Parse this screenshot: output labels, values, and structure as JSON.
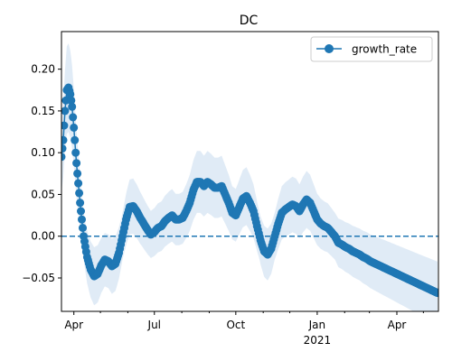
{
  "chart_data": {
    "type": "line",
    "title": "DC",
    "xlabel": "",
    "ylabel": "",
    "x_type": "date",
    "xlim": [
      "2020-03-18",
      "2021-05-18"
    ],
    "ylim": [
      -0.09,
      0.245
    ],
    "yticks": [
      -0.05,
      0.0,
      0.05,
      0.1,
      0.15,
      0.2
    ],
    "ytick_labels": [
      "−0.05",
      "0.00",
      "0.05",
      "0.10",
      "0.15",
      "0.20"
    ],
    "xticks_major": [
      {
        "date": "2020-04-01",
        "label": "Apr",
        "sublabel": ""
      },
      {
        "date": "2020-07-01",
        "label": "Jul",
        "sublabel": ""
      },
      {
        "date": "2020-10-01",
        "label": "Oct",
        "sublabel": ""
      },
      {
        "date": "2021-01-01",
        "label": "Jan",
        "sublabel": "2021"
      },
      {
        "date": "2021-04-01",
        "label": "Apr",
        "sublabel": ""
      }
    ],
    "xticks_minor": [
      "2020-05-01",
      "2020-06-01",
      "2020-08-01",
      "2020-09-01",
      "2020-11-01",
      "2020-12-01",
      "2021-02-01",
      "2021-03-01",
      "2021-05-01"
    ],
    "reference_line": {
      "y": 0.0,
      "style": "dashed"
    },
    "legend": {
      "position": "top-right",
      "entries": [
        "growth_rate"
      ]
    },
    "colors": {
      "series": "#1f77b4",
      "band": "#dbe8f4"
    },
    "band_width": 0.028,
    "series": [
      {
        "name": "growth_rate",
        "x": [
          "2020-03-18",
          "2020-03-20",
          "2020-03-22",
          "2020-03-24",
          "2020-03-26",
          "2020-03-28",
          "2020-03-30",
          "2020-04-01",
          "2020-04-03",
          "2020-04-05",
          "2020-04-08",
          "2020-04-12",
          "2020-04-16",
          "2020-04-20",
          "2020-04-24",
          "2020-04-28",
          "2020-05-02",
          "2020-05-06",
          "2020-05-10",
          "2020-05-14",
          "2020-05-18",
          "2020-05-22",
          "2020-05-26",
          "2020-05-30",
          "2020-06-03",
          "2020-06-07",
          "2020-06-11",
          "2020-06-15",
          "2020-06-19",
          "2020-06-23",
          "2020-06-27",
          "2020-07-01",
          "2020-07-05",
          "2020-07-09",
          "2020-07-13",
          "2020-07-17",
          "2020-07-21",
          "2020-07-25",
          "2020-07-29",
          "2020-08-02",
          "2020-08-06",
          "2020-08-10",
          "2020-08-14",
          "2020-08-18",
          "2020-08-22",
          "2020-08-26",
          "2020-08-30",
          "2020-09-03",
          "2020-09-07",
          "2020-09-11",
          "2020-09-15",
          "2020-09-19",
          "2020-09-23",
          "2020-09-27",
          "2020-10-01",
          "2020-10-05",
          "2020-10-09",
          "2020-10-13",
          "2020-10-17",
          "2020-10-21",
          "2020-10-25",
          "2020-10-29",
          "2020-11-02",
          "2020-11-06",
          "2020-11-10",
          "2020-11-14",
          "2020-11-18",
          "2020-11-22",
          "2020-11-26",
          "2020-11-30",
          "2020-12-04",
          "2020-12-08",
          "2020-12-12",
          "2020-12-16",
          "2020-12-20",
          "2020-12-24",
          "2020-12-28",
          "2021-01-01",
          "2021-01-05",
          "2021-01-09",
          "2021-01-13",
          "2021-01-17",
          "2021-01-21",
          "2021-01-25",
          "2021-01-29",
          "2021-02-02",
          "2021-02-06",
          "2021-02-10",
          "2021-02-14",
          "2021-02-18",
          "2021-02-22",
          "2021-02-26",
          "2021-03-02",
          "2021-03-06",
          "2021-03-10",
          "2021-03-14",
          "2021-03-18",
          "2021-03-22",
          "2021-03-26",
          "2021-03-30",
          "2021-04-03",
          "2021-04-07",
          "2021-04-11",
          "2021-04-15",
          "2021-04-19",
          "2021-04-23",
          "2021-04-27",
          "2021-05-01",
          "2021-05-05",
          "2021-05-09",
          "2021-05-13",
          "2021-05-17"
        ],
        "values": [
          0.095,
          0.115,
          0.15,
          0.175,
          0.178,
          0.17,
          0.155,
          0.13,
          0.1,
          0.075,
          0.04,
          0.0,
          -0.025,
          -0.04,
          -0.048,
          -0.045,
          -0.035,
          -0.028,
          -0.03,
          -0.036,
          -0.033,
          -0.02,
          0.0,
          0.02,
          0.035,
          0.036,
          0.03,
          0.022,
          0.015,
          0.008,
          0.002,
          0.005,
          0.01,
          0.012,
          0.018,
          0.022,
          0.025,
          0.02,
          0.02,
          0.022,
          0.03,
          0.04,
          0.055,
          0.065,
          0.065,
          0.06,
          0.065,
          0.062,
          0.058,
          0.058,
          0.06,
          0.05,
          0.04,
          0.028,
          0.025,
          0.035,
          0.045,
          0.048,
          0.04,
          0.03,
          0.012,
          -0.005,
          -0.018,
          -0.022,
          -0.015,
          0.0,
          0.015,
          0.028,
          0.032,
          0.035,
          0.038,
          0.036,
          0.03,
          0.038,
          0.044,
          0.04,
          0.03,
          0.02,
          0.015,
          0.012,
          0.01,
          0.005,
          0.0,
          -0.008,
          -0.01,
          -0.013,
          -0.015,
          -0.018,
          -0.02,
          -0.022,
          -0.025,
          -0.027,
          -0.03,
          -0.032,
          -0.034,
          -0.036,
          -0.038,
          -0.04,
          -0.042,
          -0.044,
          -0.046,
          -0.048,
          -0.05,
          -0.052,
          -0.054,
          -0.056,
          -0.058,
          -0.06,
          -0.062,
          -0.064,
          -0.066,
          -0.068
        ]
      }
    ]
  }
}
